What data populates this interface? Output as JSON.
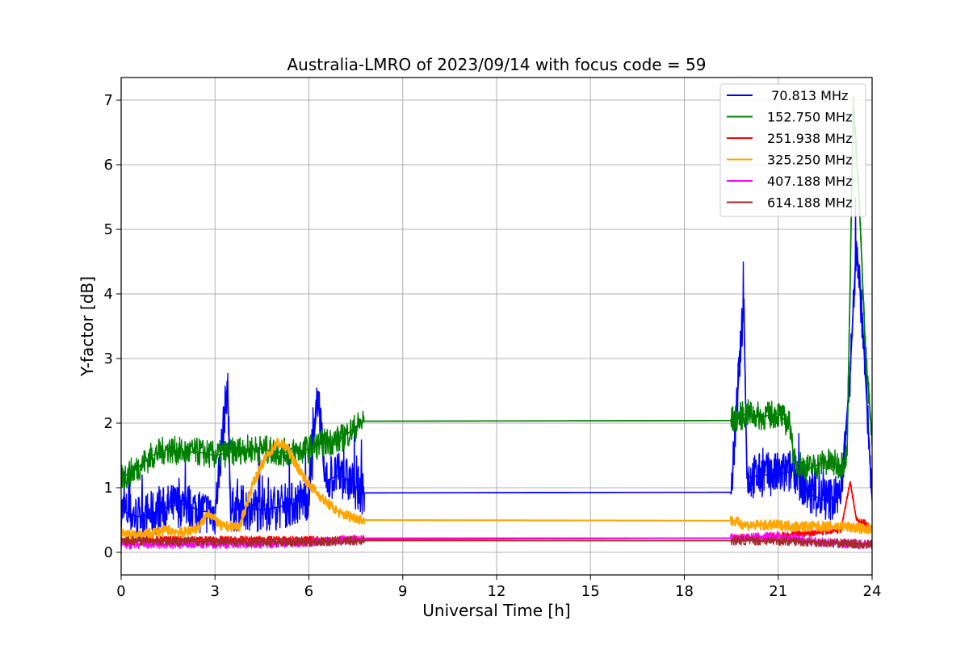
{
  "chart_data": {
    "type": "line",
    "title": "Australia-LMRO of 2023/09/14 with focus code = 59",
    "xlabel": "Universal Time [h]",
    "ylabel": "Y-factor [dB]",
    "xlim": [
      0,
      24
    ],
    "ylim": [
      -0.35,
      7.35
    ],
    "xticks": [
      0,
      3,
      6,
      9,
      12,
      15,
      18,
      21,
      24
    ],
    "yticks": [
      0,
      1,
      2,
      3,
      4,
      5,
      6,
      7
    ],
    "grid": true,
    "legend_position": "top-right",
    "data_gap": [
      7.75,
      19.5
    ],
    "series": [
      {
        "name": " 70.813 MHz",
        "color": "#0000ff",
        "x": [
          0,
          0.5,
          1,
          1.5,
          2,
          2.5,
          3,
          3.4,
          3.5,
          4,
          4.5,
          5,
          5.5,
          6,
          6.3,
          6.5,
          7,
          7.75,
          19.5,
          19.9,
          20,
          20.5,
          21,
          21.4,
          21.5,
          22,
          22.5,
          23,
          23.3,
          23.5,
          23.7,
          24
        ],
        "y": [
          0.65,
          0.55,
          0.6,
          0.7,
          0.75,
          0.65,
          0.6,
          2.62,
          0.65,
          0.7,
          0.65,
          0.7,
          0.75,
          0.85,
          2.5,
          1.1,
          1.2,
          0.92,
          0.93,
          3.92,
          1.15,
          1.2,
          1.2,
          1.25,
          1.3,
          0.9,
          0.8,
          0.9,
          2.8,
          4.8,
          3.5,
          0.8
        ]
      },
      {
        "name": "152.750 MHz",
        "color": "#008000",
        "x": [
          0,
          0.5,
          1,
          1.5,
          2,
          2.5,
          3,
          3.5,
          4,
          4.5,
          5,
          5.5,
          6,
          6.5,
          7,
          7.75,
          19.5,
          20,
          20.5,
          21,
          21.4,
          21.5,
          22,
          22.5,
          23,
          23.2,
          23.4,
          23.6,
          23.8,
          24
        ],
        "y": [
          1.15,
          1.3,
          1.5,
          1.6,
          1.55,
          1.55,
          1.5,
          1.55,
          1.6,
          1.6,
          1.55,
          1.55,
          1.6,
          1.7,
          1.75,
          2.03,
          2.04,
          2.15,
          2.1,
          2.15,
          1.95,
          1.4,
          1.3,
          1.4,
          1.35,
          1.5,
          7.0,
          5.3,
          3.0,
          1.8
        ]
      },
      {
        "name": "251.938 MHz",
        "color": "#ff0000",
        "x": [
          0,
          3,
          6,
          7.75,
          19.5,
          21,
          22,
          23,
          23.3,
          23.5,
          23.8,
          24
        ],
        "y": [
          0.2,
          0.2,
          0.2,
          0.2,
          0.22,
          0.25,
          0.3,
          0.35,
          1.1,
          0.5,
          0.45,
          0.35
        ]
      },
      {
        "name": "325.250 MHz",
        "color": "#ffa500",
        "x": [
          0,
          0.5,
          1,
          1.5,
          2,
          2.5,
          2.8,
          3.2,
          3.8,
          4.2,
          4.6,
          5,
          5.3,
          5.6,
          6,
          6.5,
          7,
          7.75,
          19.5,
          20,
          21,
          22,
          23,
          23.5,
          24
        ],
        "y": [
          0.3,
          0.25,
          0.3,
          0.35,
          0.3,
          0.4,
          0.62,
          0.4,
          0.4,
          1.05,
          1.45,
          1.7,
          1.62,
          1.35,
          1.05,
          0.8,
          0.6,
          0.5,
          0.49,
          0.42,
          0.42,
          0.4,
          0.4,
          0.38,
          0.35
        ]
      },
      {
        "name": "407.188 MHz",
        "color": "#ff00ff",
        "x": [
          0,
          2,
          4,
          6,
          7.75,
          19.5,
          21,
          22.5,
          24
        ],
        "y": [
          0.12,
          0.12,
          0.13,
          0.15,
          0.22,
          0.22,
          0.25,
          0.15,
          0.12
        ]
      },
      {
        "name": "614.188 MHz",
        "color": "#a52a2a",
        "x": [
          0,
          2,
          4,
          6,
          7.75,
          19.5,
          21,
          22.5,
          24
        ],
        "y": [
          0.18,
          0.17,
          0.16,
          0.16,
          0.18,
          0.18,
          0.18,
          0.15,
          0.12
        ]
      }
    ]
  }
}
